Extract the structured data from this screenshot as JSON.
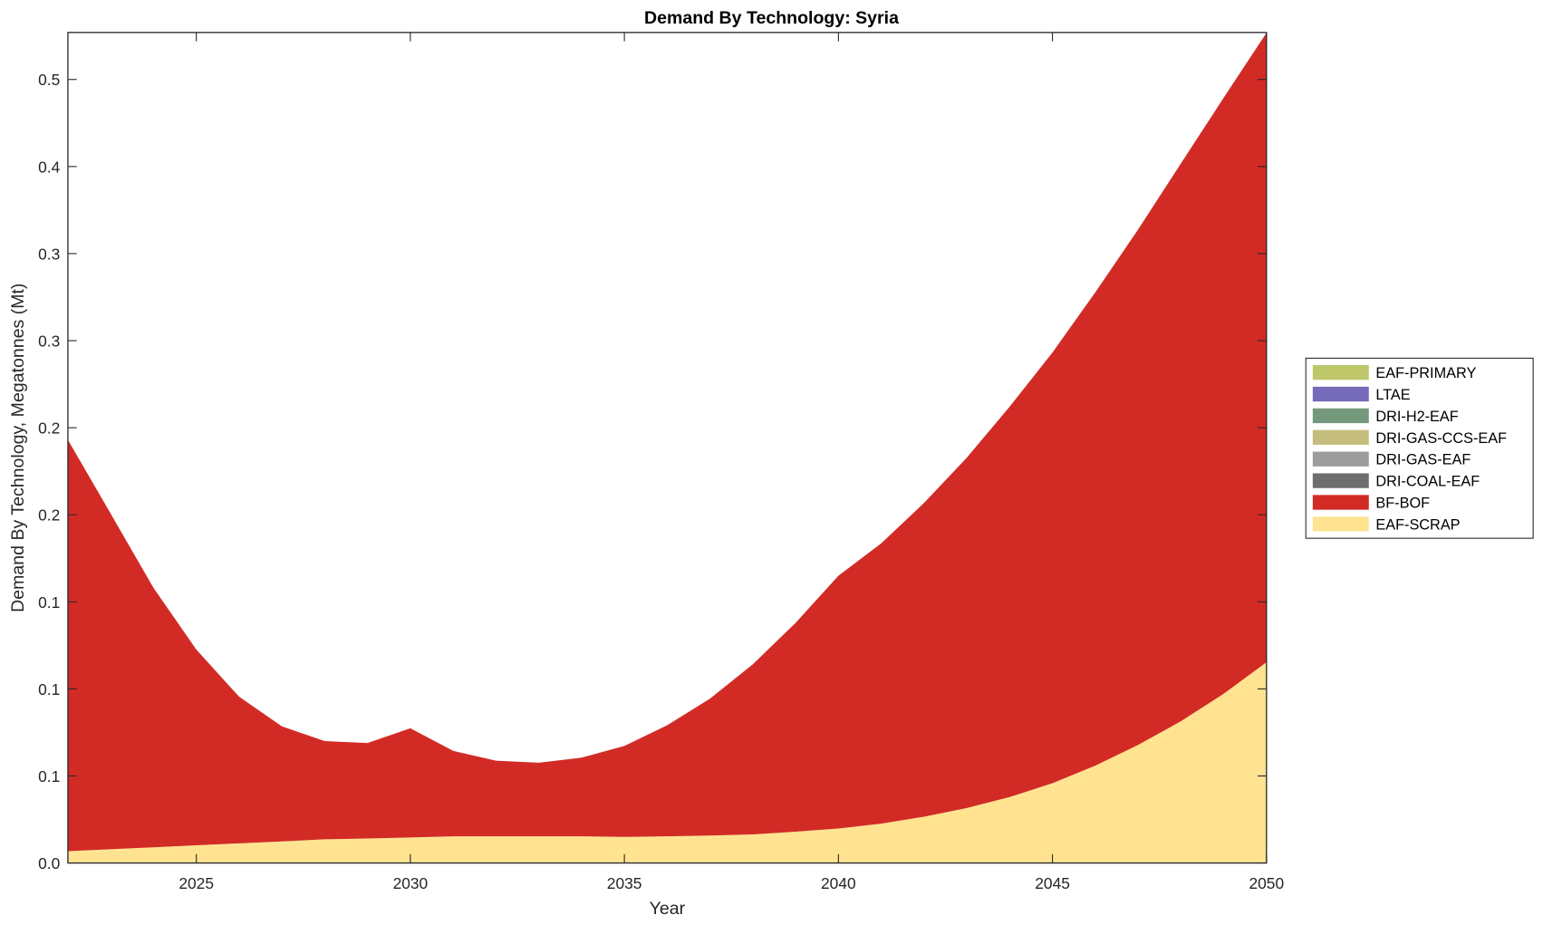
{
  "chart_data": {
    "type": "area",
    "stacked": true,
    "title": "Demand By Technology: Syria",
    "xlabel": "Year",
    "ylabel": "Demand By Technology, Megatonnes (Mt)",
    "xlim": [
      2022,
      2050
    ],
    "ylim": [
      0,
      0.477
    ],
    "grid": false,
    "legend_position": "right",
    "x_ticks": [
      2025,
      2030,
      2035,
      2040,
      2045,
      2050
    ],
    "x_tick_labels": [
      "2025",
      "2030",
      "2035",
      "2040",
      "2045",
      "2050"
    ],
    "y_ticks": [
      0,
      0.05,
      0.1,
      0.15,
      0.2,
      0.25,
      0.3,
      0.35,
      0.4,
      0.45
    ],
    "y_tick_labels": [
      "0.0",
      "0.1",
      "0.1",
      "0.1",
      "0.2",
      "0.2",
      "0.3",
      "0.3",
      "0.4",
      "0.5"
    ],
    "x": [
      2022,
      2023,
      2024,
      2025,
      2026,
      2027,
      2028,
      2029,
      2030,
      2031,
      2032,
      2033,
      2034,
      2035,
      2036,
      2037,
      2038,
      2039,
      2040,
      2041,
      2042,
      2043,
      2044,
      2045,
      2046,
      2047,
      2048,
      2049,
      2050
    ],
    "series": [
      {
        "name": "EAF-SCRAP",
        "color": "#FFE391",
        "values": [
          0.0068,
          0.0079,
          0.009,
          0.0102,
          0.0113,
          0.0124,
          0.0136,
          0.0141,
          0.0147,
          0.0153,
          0.0153,
          0.0153,
          0.0153,
          0.015,
          0.0153,
          0.0158,
          0.0164,
          0.018,
          0.0198,
          0.0226,
          0.0266,
          0.0316,
          0.0379,
          0.0458,
          0.0559,
          0.0678,
          0.0814,
          0.0972,
          0.1153
        ]
      },
      {
        "name": "BF-BOF",
        "color": "#D22B25",
        "values": [
          0.2362,
          0.1927,
          0.149,
          0.1124,
          0.0842,
          0.0661,
          0.0564,
          0.0548,
          0.0627,
          0.0491,
          0.0435,
          0.0423,
          0.0452,
          0.0522,
          0.0638,
          0.0786,
          0.0977,
          0.1199,
          0.1452,
          0.161,
          0.1802,
          0.2012,
          0.2242,
          0.2474,
          0.2718,
          0.296,
          0.3203,
          0.3423,
          0.3615
        ]
      },
      {
        "name": "DRI-COAL-EAF",
        "color": "#6E6E6E",
        "values": [
          0,
          0,
          0,
          0,
          0,
          0,
          0,
          0,
          0,
          0,
          0,
          0,
          0,
          0,
          0,
          0,
          0,
          0,
          0,
          0,
          0,
          0,
          0,
          0,
          0,
          0,
          0,
          0,
          0
        ]
      },
      {
        "name": "DRI-GAS-EAF",
        "color": "#9C9C9C",
        "values": [
          0,
          0,
          0,
          0,
          0,
          0,
          0,
          0,
          0,
          0,
          0,
          0,
          0,
          0,
          0,
          0,
          0,
          0,
          0,
          0,
          0,
          0,
          0,
          0,
          0,
          0,
          0,
          0,
          0
        ]
      },
      {
        "name": "DRI-GAS-CCS-EAF",
        "color": "#C5BD7E",
        "values": [
          0,
          0,
          0,
          0,
          0,
          0,
          0,
          0,
          0,
          0,
          0,
          0,
          0,
          0,
          0,
          0,
          0,
          0,
          0,
          0,
          0,
          0,
          0,
          0,
          0,
          0,
          0,
          0,
          0
        ]
      },
      {
        "name": "DRI-H2-EAF",
        "color": "#74997C",
        "values": [
          0,
          0,
          0,
          0,
          0,
          0,
          0,
          0,
          0,
          0,
          0,
          0,
          0,
          0,
          0,
          0,
          0,
          0,
          0,
          0,
          0,
          0,
          0,
          0,
          0,
          0,
          0,
          0,
          0
        ]
      },
      {
        "name": "LTAE",
        "color": "#756BB8",
        "values": [
          0,
          0,
          0,
          0,
          0,
          0,
          0,
          0,
          0,
          0,
          0,
          0,
          0,
          0,
          0,
          0,
          0,
          0,
          0,
          0,
          0,
          0,
          0,
          0,
          0,
          0,
          0,
          0,
          0
        ]
      },
      {
        "name": "EAF-PRIMARY",
        "color": "#BEC86B",
        "values": [
          0,
          0,
          0,
          0,
          0,
          0,
          0,
          0,
          0,
          0,
          0,
          0,
          0,
          0,
          0,
          0,
          0,
          0,
          0,
          0,
          0,
          0,
          0,
          0,
          0,
          0,
          0,
          0,
          0
        ]
      }
    ],
    "legend_order": [
      "EAF-PRIMARY",
      "LTAE",
      "DRI-H2-EAF",
      "DRI-GAS-CCS-EAF",
      "DRI-GAS-EAF",
      "DRI-COAL-EAF",
      "BF-BOF",
      "EAF-SCRAP"
    ]
  }
}
